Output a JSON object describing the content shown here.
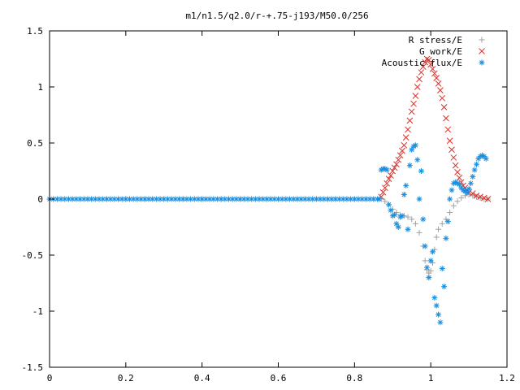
{
  "chart_data": {
    "type": "scatter",
    "title": "m1/n1.5/q2.0/r-+.75-j193/M50.0/256",
    "xlim": [
      0,
      1.2
    ],
    "ylim": [
      -1.5,
      1.5
    ],
    "x_ticks": [
      "0",
      "0.2",
      "0.4",
      "0.6",
      "0.8",
      "1",
      "1.2"
    ],
    "y_ticks": [
      "1.5",
      "1",
      "0.5",
      "0",
      "-0.5",
      "-1",
      "-1.5"
    ],
    "x_tick_values": [
      0,
      0.2,
      0.4,
      0.6,
      0.8,
      1.0,
      1.2
    ],
    "y_tick_values": [
      1.5,
      1,
      0.5,
      0,
      -0.5,
      -1,
      -1.5
    ],
    "legend_position": "top-right",
    "grid": false,
    "series": [
      {
        "name": "R stress/E",
        "marker": "plus",
        "color": "#a0a0a0",
        "points": [
          [
            0.0,
            0
          ],
          [
            0.05,
            0
          ],
          [
            0.1,
            0
          ],
          [
            0.15,
            0
          ],
          [
            0.2,
            0
          ],
          [
            0.25,
            0
          ],
          [
            0.3,
            0
          ],
          [
            0.35,
            0
          ],
          [
            0.4,
            0
          ],
          [
            0.45,
            0
          ],
          [
            0.5,
            0
          ],
          [
            0.55,
            0
          ],
          [
            0.6,
            0
          ],
          [
            0.65,
            0
          ],
          [
            0.7,
            0
          ],
          [
            0.75,
            0
          ],
          [
            0.8,
            0
          ],
          [
            0.85,
            0
          ],
          [
            0.87,
            0.0
          ],
          [
            0.88,
            -0.02
          ],
          [
            0.89,
            -0.05
          ],
          [
            0.9,
            -0.09
          ],
          [
            0.91,
            -0.12
          ],
          [
            0.92,
            -0.14
          ],
          [
            0.93,
            -0.15
          ],
          [
            0.94,
            -0.16
          ],
          [
            0.95,
            -0.18
          ],
          [
            0.96,
            -0.22
          ],
          [
            0.97,
            -0.3
          ],
          [
            0.98,
            -0.42
          ],
          [
            0.985,
            -0.55
          ],
          [
            0.99,
            -0.63
          ],
          [
            0.995,
            -0.66
          ],
          [
            1.0,
            -0.64
          ],
          [
            1.005,
            -0.57
          ],
          [
            1.01,
            -0.45
          ],
          [
            1.015,
            -0.34
          ],
          [
            1.02,
            -0.27
          ],
          [
            1.03,
            -0.22
          ],
          [
            1.04,
            -0.18
          ],
          [
            1.05,
            -0.12
          ],
          [
            1.06,
            -0.06
          ],
          [
            1.07,
            -0.02
          ],
          [
            1.08,
            0.01
          ],
          [
            1.09,
            0.03
          ],
          [
            1.1,
            0.04
          ],
          [
            1.11,
            0.03
          ],
          [
            1.12,
            0.02
          ],
          [
            1.13,
            0.01
          ],
          [
            1.14,
            0.0
          ],
          [
            1.15,
            0.0
          ]
        ]
      },
      {
        "name": "G work/E",
        "marker": "cross",
        "color": "#e0302a",
        "points": [
          [
            0.87,
            0.02
          ],
          [
            0.875,
            0.06
          ],
          [
            0.88,
            0.1
          ],
          [
            0.885,
            0.14
          ],
          [
            0.89,
            0.18
          ],
          [
            0.895,
            0.21
          ],
          [
            0.9,
            0.25
          ],
          [
            0.905,
            0.28
          ],
          [
            0.91,
            0.31
          ],
          [
            0.915,
            0.35
          ],
          [
            0.92,
            0.39
          ],
          [
            0.925,
            0.43
          ],
          [
            0.93,
            0.48
          ],
          [
            0.935,
            0.55
          ],
          [
            0.94,
            0.62
          ],
          [
            0.945,
            0.7
          ],
          [
            0.95,
            0.78
          ],
          [
            0.955,
            0.85
          ],
          [
            0.96,
            0.92
          ],
          [
            0.965,
            1.0
          ],
          [
            0.97,
            1.07
          ],
          [
            0.975,
            1.13
          ],
          [
            0.98,
            1.18
          ],
          [
            0.985,
            1.22
          ],
          [
            0.99,
            1.25
          ],
          [
            0.995,
            1.24
          ],
          [
            1.0,
            1.2
          ],
          [
            1.005,
            1.16
          ],
          [
            1.01,
            1.12
          ],
          [
            1.015,
            1.08
          ],
          [
            1.02,
            1.03
          ],
          [
            1.025,
            0.97
          ],
          [
            1.03,
            0.9
          ],
          [
            1.035,
            0.82
          ],
          [
            1.04,
            0.72
          ],
          [
            1.045,
            0.62
          ],
          [
            1.05,
            0.52
          ],
          [
            1.055,
            0.44
          ],
          [
            1.06,
            0.37
          ],
          [
            1.065,
            0.3
          ],
          [
            1.07,
            0.24
          ],
          [
            1.075,
            0.19
          ],
          [
            1.08,
            0.15
          ],
          [
            1.085,
            0.12
          ],
          [
            1.09,
            0.1
          ],
          [
            1.095,
            0.08
          ],
          [
            1.1,
            0.06
          ],
          [
            1.11,
            0.05
          ],
          [
            1.12,
            0.03
          ],
          [
            1.13,
            0.02
          ],
          [
            1.14,
            0.01
          ],
          [
            1.15,
            0.0
          ]
        ]
      },
      {
        "name": "Acoustic flux/E",
        "marker": "star",
        "color": "#1a8fe0",
        "points": [
          [
            0.0,
            0
          ],
          [
            0.01,
            0
          ],
          [
            0.02,
            0
          ],
          [
            0.03,
            0
          ],
          [
            0.04,
            0
          ],
          [
            0.05,
            0
          ],
          [
            0.06,
            0
          ],
          [
            0.07,
            0
          ],
          [
            0.08,
            0
          ],
          [
            0.09,
            0
          ],
          [
            0.1,
            0
          ],
          [
            0.11,
            0
          ],
          [
            0.12,
            0
          ],
          [
            0.13,
            0
          ],
          [
            0.14,
            0
          ],
          [
            0.15,
            0
          ],
          [
            0.16,
            0
          ],
          [
            0.17,
            0
          ],
          [
            0.18,
            0
          ],
          [
            0.19,
            0
          ],
          [
            0.2,
            0
          ],
          [
            0.21,
            0
          ],
          [
            0.22,
            0
          ],
          [
            0.23,
            0
          ],
          [
            0.24,
            0
          ],
          [
            0.25,
            0
          ],
          [
            0.26,
            0
          ],
          [
            0.27,
            0
          ],
          [
            0.28,
            0
          ],
          [
            0.29,
            0
          ],
          [
            0.3,
            0
          ],
          [
            0.31,
            0
          ],
          [
            0.32,
            0
          ],
          [
            0.33,
            0
          ],
          [
            0.34,
            0
          ],
          [
            0.35,
            0
          ],
          [
            0.36,
            0
          ],
          [
            0.37,
            0
          ],
          [
            0.38,
            0
          ],
          [
            0.39,
            0
          ],
          [
            0.4,
            0
          ],
          [
            0.41,
            0
          ],
          [
            0.42,
            0
          ],
          [
            0.43,
            0
          ],
          [
            0.44,
            0
          ],
          [
            0.45,
            0
          ],
          [
            0.46,
            0
          ],
          [
            0.47,
            0
          ],
          [
            0.48,
            0
          ],
          [
            0.49,
            0
          ],
          [
            0.5,
            0
          ],
          [
            0.51,
            0
          ],
          [
            0.52,
            0
          ],
          [
            0.53,
            0
          ],
          [
            0.54,
            0
          ],
          [
            0.55,
            0
          ],
          [
            0.56,
            0
          ],
          [
            0.57,
            0
          ],
          [
            0.58,
            0
          ],
          [
            0.59,
            0
          ],
          [
            0.6,
            0
          ],
          [
            0.61,
            0
          ],
          [
            0.62,
            0
          ],
          [
            0.63,
            0
          ],
          [
            0.64,
            0
          ],
          [
            0.65,
            0
          ],
          [
            0.66,
            0
          ],
          [
            0.67,
            0
          ],
          [
            0.68,
            0
          ],
          [
            0.69,
            0
          ],
          [
            0.7,
            0
          ],
          [
            0.71,
            0
          ],
          [
            0.72,
            0
          ],
          [
            0.73,
            0
          ],
          [
            0.74,
            0
          ],
          [
            0.75,
            0
          ],
          [
            0.76,
            0
          ],
          [
            0.77,
            0
          ],
          [
            0.78,
            0
          ],
          [
            0.79,
            0
          ],
          [
            0.8,
            0
          ],
          [
            0.81,
            0
          ],
          [
            0.82,
            0
          ],
          [
            0.83,
            0
          ],
          [
            0.84,
            0
          ],
          [
            0.85,
            0
          ],
          [
            0.86,
            0
          ],
          [
            0.865,
            0.0
          ],
          [
            0.87,
            0.26
          ],
          [
            0.875,
            0.27
          ],
          [
            0.88,
            0.27
          ],
          [
            0.885,
            0.26
          ],
          [
            0.89,
            -0.05
          ],
          [
            0.895,
            -0.1
          ],
          [
            0.9,
            -0.15
          ],
          [
            0.905,
            -0.14
          ],
          [
            0.91,
            -0.22
          ],
          [
            0.915,
            -0.25
          ],
          [
            0.92,
            -0.16
          ],
          [
            0.925,
            -0.15
          ],
          [
            0.93,
            0.04
          ],
          [
            0.935,
            0.12
          ],
          [
            0.94,
            -0.27
          ],
          [
            0.945,
            0.3
          ],
          [
            0.95,
            0.44
          ],
          [
            0.955,
            0.47
          ],
          [
            0.96,
            0.48
          ],
          [
            0.965,
            0.35
          ],
          [
            0.97,
            0.0
          ],
          [
            0.975,
            0.25
          ],
          [
            0.98,
            -0.18
          ],
          [
            0.985,
            -0.42
          ],
          [
            0.99,
            -0.61
          ],
          [
            0.995,
            -0.7
          ],
          [
            1.0,
            -0.55
          ],
          [
            1.005,
            -0.47
          ],
          [
            1.01,
            -0.88
          ],
          [
            1.015,
            -0.95
          ],
          [
            1.02,
            -1.03
          ],
          [
            1.025,
            -1.1
          ],
          [
            1.03,
            -0.62
          ],
          [
            1.035,
            -0.78
          ],
          [
            1.04,
            -0.35
          ],
          [
            1.045,
            -0.2
          ],
          [
            1.05,
            0.0
          ],
          [
            1.055,
            0.08
          ],
          [
            1.06,
            0.14
          ],
          [
            1.065,
            0.15
          ],
          [
            1.07,
            0.14
          ],
          [
            1.075,
            0.13
          ],
          [
            1.08,
            0.1
          ],
          [
            1.085,
            0.08
          ],
          [
            1.09,
            0.07
          ],
          [
            1.095,
            0.06
          ],
          [
            1.1,
            0.09
          ],
          [
            1.105,
            0.14
          ],
          [
            1.11,
            0.2
          ],
          [
            1.115,
            0.26
          ],
          [
            1.12,
            0.31
          ],
          [
            1.125,
            0.36
          ],
          [
            1.13,
            0.38
          ],
          [
            1.135,
            0.39
          ],
          [
            1.14,
            0.38
          ],
          [
            1.145,
            0.36
          ]
        ]
      }
    ]
  }
}
